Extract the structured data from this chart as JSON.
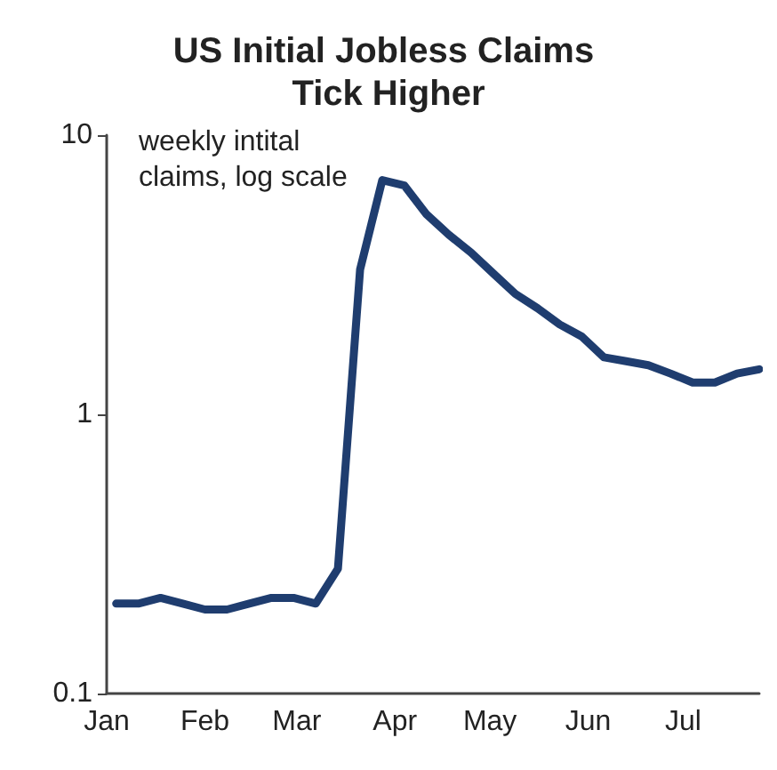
{
  "chart_data": {
    "type": "line",
    "title": "US Initial Jobless Claims Tick Higher",
    "annotations": [
      "weekly intital claims, log scale"
    ],
    "x": [
      "--01-04",
      "--01-11",
      "--01-18",
      "--01-25",
      "--02-01",
      "--02-08",
      "--02-15",
      "--02-22",
      "--02-29",
      "--03-07",
      "--03-14",
      "--03-21",
      "--03-28",
      "--04-04",
      "--04-11",
      "--04-18",
      "--04-25",
      "--05-02",
      "--05-09",
      "--05-16",
      "--05-23",
      "--05-30",
      "--06-06",
      "--06-13",
      "--06-20",
      "--06-27",
      "--07-04",
      "--07-11",
      "--07-18",
      "--07-25"
    ],
    "series": [
      {
        "color": "#1f3d6f",
        "values": [
          0.21,
          0.21,
          0.22,
          0.21,
          0.2,
          0.2,
          0.21,
          0.22,
          0.22,
          0.21,
          0.28,
          3.3,
          6.9,
          6.6,
          5.2,
          4.4,
          3.8,
          3.2,
          2.7,
          2.4,
          2.1,
          1.9,
          1.6,
          1.55,
          1.5,
          1.4,
          1.3,
          1.3,
          1.4,
          1.45
        ]
      }
    ],
    "xlim": [
      "--01-01",
      "--07-25"
    ],
    "xticks": [
      {
        "value": "--01-01",
        "label": "Jan"
      },
      {
        "value": "--02-01",
        "label": "Feb"
      },
      {
        "value": "--03-01",
        "label": "Mar"
      },
      {
        "value": "--04-01",
        "label": "Apr"
      },
      {
        "value": "--05-01",
        "label": "May"
      },
      {
        "value": "--06-01",
        "label": "Jun"
      },
      {
        "value": "--07-01",
        "label": "Jul"
      }
    ],
    "ylim": [
      0.1,
      10
    ],
    "yticks": [
      0.1,
      1,
      10
    ],
    "log": "y",
    "grid": false,
    "marker": "none",
    "line_style": "solid"
  }
}
